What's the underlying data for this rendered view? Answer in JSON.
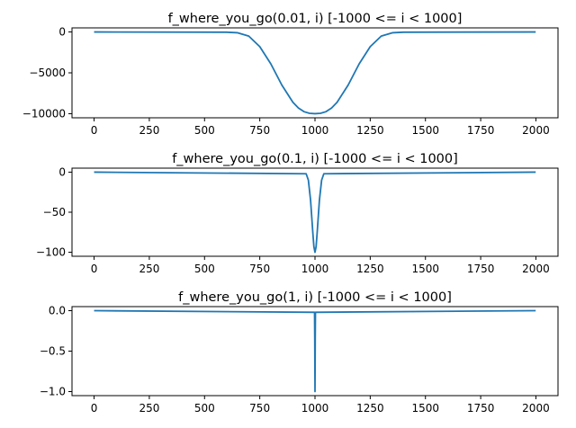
{
  "chart_data": [
    {
      "type": "line",
      "title": "f_where_you_go(0.01, i) [-1000 <= i < 1000]",
      "xlabel": "",
      "ylabel": "",
      "x_range": [
        0,
        1999
      ],
      "xlim": [
        -100,
        2100
      ],
      "ylim": [
        -10500,
        500
      ],
      "xticks": [
        0,
        250,
        500,
        750,
        1000,
        1250,
        1500,
        1750,
        2000
      ],
      "yticks": [
        0,
        -5000,
        -10000
      ],
      "ytick_labels": [
        "0",
        "−5000",
        "−10000"
      ],
      "series": [
        {
          "color": "#1f77b4",
          "x": [
            0,
            600,
            650,
            700,
            750,
            800,
            850,
            900,
            925,
            950,
            975,
            1000,
            1025,
            1050,
            1075,
            1100,
            1150,
            1200,
            1250,
            1300,
            1350,
            1400,
            1999
          ],
          "y": [
            0,
            -30,
            -100,
            -500,
            -1800,
            -3900,
            -6500,
            -8600,
            -9300,
            -9750,
            -9950,
            -10000,
            -9950,
            -9750,
            -9300,
            -8600,
            -6500,
            -3900,
            -1800,
            -500,
            -100,
            -30,
            0
          ]
        }
      ]
    },
    {
      "type": "line",
      "title": "f_where_you_go(0.1, i) [-1000 <= i < 1000]",
      "xlabel": "",
      "ylabel": "",
      "x_range": [
        0,
        1999
      ],
      "xlim": [
        -100,
        2100
      ],
      "ylim": [
        -105,
        5
      ],
      "xticks": [
        0,
        250,
        500,
        750,
        1000,
        1250,
        1500,
        1750,
        2000
      ],
      "yticks": [
        0,
        -50,
        -100
      ],
      "ytick_labels": [
        "0",
        "−50",
        "−100"
      ],
      "series": [
        {
          "color": "#1f77b4",
          "x": [
            0,
            960,
            970,
            980,
            985,
            990,
            995,
            1000,
            1005,
            1010,
            1015,
            1020,
            1030,
            1040,
            1999
          ],
          "y": [
            0,
            -2,
            -10,
            -35,
            -55,
            -75,
            -93,
            -100,
            -93,
            -75,
            -55,
            -35,
            -10,
            -2,
            0
          ]
        }
      ]
    },
    {
      "type": "line",
      "title": "f_where_you_go(1, i) [-1000 <= i < 1000]",
      "xlabel": "",
      "ylabel": "",
      "x_range": [
        0,
        1999
      ],
      "xlim": [
        -100,
        2100
      ],
      "ylim": [
        -1.05,
        0.05
      ],
      "xticks": [
        0,
        250,
        500,
        750,
        1000,
        1250,
        1500,
        1750,
        2000
      ],
      "yticks": [
        0.0,
        -0.5,
        -1.0
      ],
      "ytick_labels": [
        "0.0",
        "−0.5",
        "−1.0"
      ],
      "series": [
        {
          "color": "#1f77b4",
          "x": [
            0,
            998,
            999,
            1000,
            1001,
            1002,
            1999
          ],
          "y": [
            0,
            -0.02,
            -0.37,
            -1.0,
            -0.37,
            -0.02,
            0
          ]
        }
      ]
    }
  ]
}
